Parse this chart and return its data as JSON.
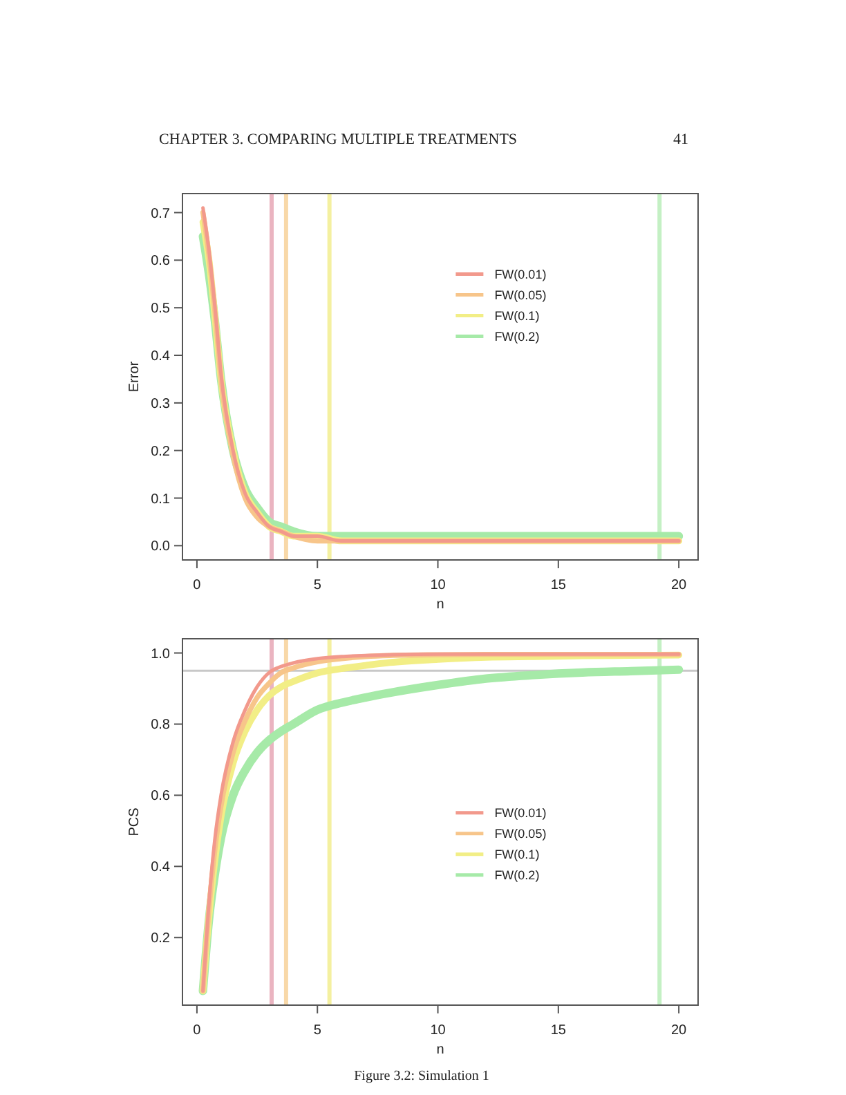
{
  "chart_data": [
    {
      "type": "line",
      "ylabel": "Error",
      "xlabel": "n",
      "annotations": [
        "CHAPTER 3. COMPARING MULTIPLE TREATMENTS",
        "41"
      ],
      "x": [
        0.25,
        0.5,
        0.75,
        1,
        1.5,
        2,
        2.5,
        3,
        3.5,
        4,
        5,
        6,
        7,
        8,
        10,
        12,
        14,
        16,
        18,
        20
      ],
      "series": [
        {
          "name": "FW(0.01)",
          "color": "#f2998c",
          "values": [
            0.71,
            0.62,
            0.5,
            0.36,
            0.2,
            0.11,
            0.07,
            0.04,
            0.03,
            0.02,
            0.02,
            0.01,
            0.01,
            0.01,
            0.01,
            0.01,
            0.01,
            0.01,
            0.01,
            0.01
          ]
        },
        {
          "name": "FW(0.05)",
          "color": "#f7c58a",
          "values": [
            0.7,
            0.61,
            0.49,
            0.35,
            0.19,
            0.1,
            0.06,
            0.04,
            0.03,
            0.02,
            0.01,
            0.01,
            0.01,
            0.01,
            0.01,
            0.01,
            0.01,
            0.01,
            0.01,
            0.01
          ]
        },
        {
          "name": "FW(0.1)",
          "color": "#f2ee86",
          "values": [
            0.68,
            0.6,
            0.48,
            0.35,
            0.2,
            0.11,
            0.07,
            0.04,
            0.03,
            0.02,
            0.02,
            0.01,
            0.01,
            0.01,
            0.01,
            0.01,
            0.01,
            0.01,
            0.01,
            0.01
          ]
        },
        {
          "name": "FW(0.2)",
          "color": "#a6eaa8",
          "values": [
            0.65,
            0.57,
            0.47,
            0.35,
            0.2,
            0.12,
            0.08,
            0.05,
            0.04,
            0.03,
            0.02,
            0.02,
            0.02,
            0.02,
            0.02,
            0.02,
            0.02,
            0.02,
            0.02,
            0.02
          ]
        }
      ],
      "xlim": [
        -0.6,
        20.8
      ],
      "xticks": [
        0,
        5,
        10,
        15,
        20
      ],
      "ylim": [
        -0.03,
        0.74
      ],
      "yticks": [
        {
          "value": 0,
          "label": "0.0"
        },
        0.1,
        0.2,
        0.3,
        0.4,
        0.5,
        0.6,
        0.7
      ],
      "ref_lines": [
        {
          "axis": "x",
          "value": 3.1,
          "color": "#eab4c0"
        },
        {
          "axis": "x",
          "value": 3.7,
          "color": "#f8d8a8"
        },
        {
          "axis": "x",
          "value": 5.5,
          "color": "#f4f0a0"
        },
        {
          "axis": "x",
          "value": 19.2,
          "color": "#c4f0c4"
        }
      ],
      "legend": "top right"
    },
    {
      "type": "line",
      "ylabel": "PCS",
      "xlabel": "n",
      "annotations": [
        "Figure 3.2: Simulation 1"
      ],
      "x": [
        0.25,
        0.5,
        0.75,
        1,
        1.5,
        2,
        2.5,
        3,
        3.5,
        4,
        5,
        6,
        7,
        8,
        10,
        12,
        14,
        16,
        18,
        20
      ],
      "series": [
        {
          "name": "FW(0.01)",
          "color": "#f2998c",
          "values": [
            0.05,
            0.3,
            0.48,
            0.6,
            0.75,
            0.84,
            0.905,
            0.945,
            0.962,
            0.972,
            0.984,
            0.99,
            0.993,
            0.995,
            0.997,
            0.997,
            0.997,
            0.997,
            0.997,
            0.997
          ]
        },
        {
          "name": "FW(0.05)",
          "color": "#f7c58a",
          "values": [
            0.05,
            0.28,
            0.45,
            0.57,
            0.72,
            0.81,
            0.875,
            0.915,
            0.945,
            0.958,
            0.975,
            0.984,
            0.99,
            0.993,
            0.995,
            0.996,
            0.996,
            0.996,
            0.996,
            0.996
          ]
        },
        {
          "name": "FW(0.1)",
          "color": "#f2ee86",
          "values": [
            0.05,
            0.26,
            0.42,
            0.54,
            0.69,
            0.78,
            0.84,
            0.88,
            0.905,
            0.92,
            0.944,
            0.956,
            0.965,
            0.973,
            0.982,
            0.988,
            0.99,
            0.992,
            0.993,
            0.994
          ]
        },
        {
          "name": "FW(0.2)",
          "color": "#a6eaa8",
          "values": [
            0.05,
            0.25,
            0.38,
            0.48,
            0.6,
            0.67,
            0.72,
            0.755,
            0.78,
            0.8,
            0.84,
            0.86,
            0.875,
            0.888,
            0.91,
            0.928,
            0.938,
            0.945,
            0.949,
            0.953
          ]
        }
      ],
      "xlim": [
        -0.6,
        20.8
      ],
      "xticks": [
        0,
        5,
        10,
        15,
        20
      ],
      "ylim": [
        0.01,
        1.04
      ],
      "yticks": [
        0.2,
        0.4,
        0.6,
        0.8,
        {
          "value": 1,
          "label": "1.0"
        }
      ],
      "ref_lines": [
        {
          "axis": "y",
          "value": 0.95,
          "color": "#c8c8c8"
        },
        {
          "axis": "x",
          "value": 3.1,
          "color": "#eab4c0"
        },
        {
          "axis": "x",
          "value": 3.7,
          "color": "#f8d8a8"
        },
        {
          "axis": "x",
          "value": 5.5,
          "color": "#f4f0a0"
        },
        {
          "axis": "x",
          "value": 19.2,
          "color": "#c4f0c4"
        }
      ],
      "legend": "right"
    }
  ]
}
